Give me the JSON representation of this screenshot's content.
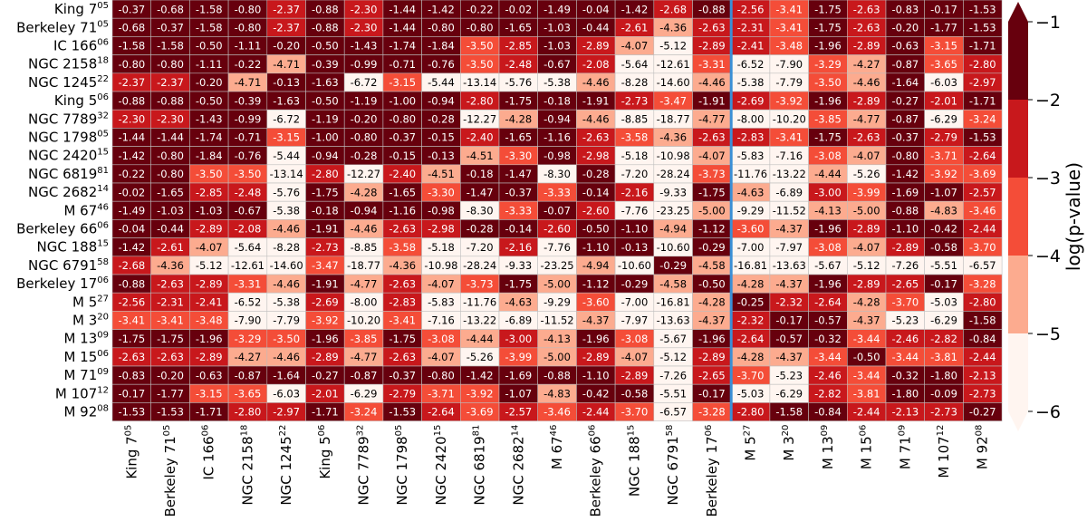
{
  "chart_data": {
    "type": "heatmap",
    "colorbar_label": "log(p-value)",
    "colorbar_ticks": [
      -1,
      -2,
      -3,
      -4,
      -5,
      -6
    ],
    "color_levels": [
      {
        "min": -2,
        "max": -1,
        "color": "#67000d"
      },
      {
        "min": -3,
        "max": -2,
        "color": "#c8181c"
      },
      {
        "min": -4,
        "max": -3,
        "color": "#f44d38"
      },
      {
        "min": -5,
        "max": -4,
        "color": "#fcab8f"
      },
      {
        "min": -6,
        "max": -5,
        "color": "#fff5f0"
      }
    ],
    "separator_after_index": 16,
    "labels": [
      {
        "name": "King 7",
        "sup": "05"
      },
      {
        "name": "Berkeley 71",
        "sup": "05"
      },
      {
        "name": "IC 166",
        "sup": "06"
      },
      {
        "name": "NGC 2158",
        "sup": "18"
      },
      {
        "name": "NGC 1245",
        "sup": "22"
      },
      {
        "name": "King 5",
        "sup": "06"
      },
      {
        "name": "NGC 7789",
        "sup": "32"
      },
      {
        "name": "NGC 1798",
        "sup": "05"
      },
      {
        "name": "NGC 2420",
        "sup": "15"
      },
      {
        "name": "NGC 6819",
        "sup": "81"
      },
      {
        "name": "NGC 2682",
        "sup": "14"
      },
      {
        "name": "M 67",
        "sup": "46"
      },
      {
        "name": "Berkeley 66",
        "sup": "06"
      },
      {
        "name": "NGC 188",
        "sup": "15"
      },
      {
        "name": "NGC 6791",
        "sup": "58"
      },
      {
        "name": "Berkeley 17",
        "sup": "06"
      },
      {
        "name": "M 5",
        "sup": "27"
      },
      {
        "name": "M 3",
        "sup": "20"
      },
      {
        "name": "M 13",
        "sup": "09"
      },
      {
        "name": "M 15",
        "sup": "06"
      },
      {
        "name": "M 71",
        "sup": "09"
      },
      {
        "name": "M 107",
        "sup": "12"
      },
      {
        "name": "M 92",
        "sup": "08"
      }
    ],
    "values": [
      [
        "-0.37",
        "-0.68",
        "-1.58",
        "-0.80",
        "-2.37",
        "-0.88",
        "-2.30",
        "-1.44",
        "-1.42",
        "-0.22",
        "-0.02",
        "-1.49",
        "-0.04",
        "-1.42",
        "-2.68",
        "-0.88",
        "-2.56",
        "-3.41",
        "-1.75",
        "-2.63",
        "-0.83",
        "-0.17",
        "-1.53"
      ],
      [
        "-0.68",
        "-0.37",
        "-1.58",
        "-0.80",
        "-2.37",
        "-0.88",
        "-2.30",
        "-1.44",
        "-0.80",
        "-0.80",
        "-1.65",
        "-1.03",
        "-0.44",
        "-2.61",
        "-4.36",
        "-2.63",
        "-2.31",
        "-3.41",
        "-1.75",
        "-2.63",
        "-0.20",
        "-1.77",
        "-1.53"
      ],
      [
        "-1.58",
        "-1.58",
        "-0.50",
        "-1.11",
        "-0.20",
        "-0.50",
        "-1.43",
        "-1.74",
        "-1.84",
        "-3.50",
        "-2.85",
        "-1.03",
        "-2.89",
        "-4.07",
        "-5.12",
        "-2.89",
        "-2.41",
        "-3.48",
        "-1.96",
        "-2.89",
        "-0.63",
        "-3.15",
        "-1.71"
      ],
      [
        "-0.80",
        "-0.80",
        "-1.11",
        "-0.22",
        "-4.71",
        "-0.39",
        "-0.99",
        "-0.71",
        "-0.76",
        "-3.50",
        "-2.48",
        "-0.67",
        "-2.08",
        "-5.64",
        "-12.61",
        "-3.31",
        "-6.52",
        "-7.90",
        "-3.29",
        "-4.27",
        "-0.87",
        "-3.65",
        "-2.80"
      ],
      [
        "-2.37",
        "-2.37",
        "-0.20",
        "-4.71",
        "-0.13",
        "-1.63",
        "-6.72",
        "-3.15",
        "-5.44",
        "-13.14",
        "-5.76",
        "-5.38",
        "-4.46",
        "-8.28",
        "-14.60",
        "-4.46",
        "-5.38",
        "-7.79",
        "-3.50",
        "-4.46",
        "-1.64",
        "-6.03",
        "-2.97"
      ],
      [
        "-0.88",
        "-0.88",
        "-0.50",
        "-0.39",
        "-1.63",
        "-0.50",
        "-1.19",
        "-1.00",
        "-0.94",
        "-2.80",
        "-1.75",
        "-0.18",
        "-1.91",
        "-2.73",
        "-3.47",
        "-1.91",
        "-2.69",
        "-3.92",
        "-1.96",
        "-2.89",
        "-0.27",
        "-2.01",
        "-1.71"
      ],
      [
        "-2.30",
        "-2.30",
        "-1.43",
        "-0.99",
        "-6.72",
        "-1.19",
        "-0.20",
        "-0.80",
        "-0.28",
        "-12.27",
        "-4.28",
        "-0.94",
        "-4.46",
        "-8.85",
        "-18.77",
        "-4.77",
        "-8.00",
        "-10.20",
        "-3.85",
        "-4.77",
        "-0.87",
        "-6.29",
        "-3.24"
      ],
      [
        "-1.44",
        "-1.44",
        "-1.74",
        "-0.71",
        "-3.15",
        "-1.00",
        "-0.80",
        "-0.37",
        "-0.15",
        "-2.40",
        "-1.65",
        "-1.16",
        "-2.63",
        "-3.58",
        "-4.36",
        "-2.63",
        "-2.83",
        "-3.41",
        "-1.75",
        "-2.63",
        "-0.37",
        "-2.79",
        "-1.53"
      ],
      [
        "-1.42",
        "-0.80",
        "-1.84",
        "-0.76",
        "-5.44",
        "-0.94",
        "-0.28",
        "-0.15",
        "-0.13",
        "-4.51",
        "-3.30",
        "-0.98",
        "-2.98",
        "-5.18",
        "-10.98",
        "-4.07",
        "-5.83",
        "-7.16",
        "-3.08",
        "-4.07",
        "-0.80",
        "-3.71",
        "-2.64"
      ],
      [
        "-0.22",
        "-0.80",
        "-3.50",
        "-3.50",
        "-13.14",
        "-2.80",
        "-12.27",
        "-2.40",
        "-4.51",
        "-0.18",
        "-1.47",
        "-8.30",
        "-0.28",
        "-7.20",
        "-28.24",
        "-3.73",
        "-11.76",
        "-13.22",
        "-4.44",
        "-5.26",
        "-1.42",
        "-3.92",
        "-3.69"
      ],
      [
        "-0.02",
        "-1.65",
        "-2.85",
        "-2.48",
        "-5.76",
        "-1.75",
        "-4.28",
        "-1.65",
        "-3.30",
        "-1.47",
        "-0.37",
        "-3.33",
        "-0.14",
        "-2.16",
        "-9.33",
        "-1.75",
        "-4.63",
        "-6.89",
        "-3.00",
        "-3.99",
        "-1.69",
        "-1.07",
        "-2.57"
      ],
      [
        "-1.49",
        "-1.03",
        "-1.03",
        "-0.67",
        "-5.38",
        "-0.18",
        "-0.94",
        "-1.16",
        "-0.98",
        "-8.30",
        "-3.33",
        "-0.07",
        "-2.60",
        "-7.76",
        "-23.25",
        "-5.00",
        "-9.29",
        "-11.52",
        "-4.13",
        "-5.00",
        "-0.88",
        "-4.83",
        "-3.46"
      ],
      [
        "-0.04",
        "-0.44",
        "-2.89",
        "-2.08",
        "-4.46",
        "-1.91",
        "-4.46",
        "-2.63",
        "-2.98",
        "-0.28",
        "-0.14",
        "-2.60",
        "-0.50",
        "-1.10",
        "-4.94",
        "-1.12",
        "-3.60",
        "-4.37",
        "-1.96",
        "-2.89",
        "-1.10",
        "-0.42",
        "-2.44"
      ],
      [
        "-1.42",
        "-2.61",
        "-4.07",
        "-5.64",
        "-8.28",
        "-2.73",
        "-8.85",
        "-3.58",
        "-5.18",
        "-7.20",
        "-2.16",
        "-7.76",
        "-1.10",
        "-0.13",
        "-10.60",
        "-0.29",
        "-7.00",
        "-7.97",
        "-3.08",
        "-4.07",
        "-2.89",
        "-0.58",
        "-3.70"
      ],
      [
        "-2.68",
        "-4.36",
        "-5.12",
        "-12.61",
        "-14.60",
        "-3.47",
        "-18.77",
        "-4.36",
        "-10.98",
        "-28.24",
        "-9.33",
        "-23.25",
        "-4.94",
        "-10.60",
        "-0.29",
        "-4.58",
        "-16.81",
        "-13.63",
        "-5.67",
        "-5.12",
        "-7.26",
        "-5.51",
        "-6.57"
      ],
      [
        "-0.88",
        "-2.63",
        "-2.89",
        "-3.31",
        "-4.46",
        "-1.91",
        "-4.77",
        "-2.63",
        "-4.07",
        "-3.73",
        "-1.75",
        "-5.00",
        "-1.12",
        "-0.29",
        "-4.58",
        "-0.50",
        "-4.28",
        "-4.37",
        "-1.96",
        "-2.89",
        "-2.65",
        "-0.17",
        "-3.28"
      ],
      [
        "-2.56",
        "-2.31",
        "-2.41",
        "-6.52",
        "-5.38",
        "-2.69",
        "-8.00",
        "-2.83",
        "-5.83",
        "-11.76",
        "-4.63",
        "-9.29",
        "-3.60",
        "-7.00",
        "-16.81",
        "-4.28",
        "-0.25",
        "-2.32",
        "-2.64",
        "-4.28",
        "-3.70",
        "-5.03",
        "-2.80"
      ],
      [
        "-3.41",
        "-3.41",
        "-3.48",
        "-7.90",
        "-7.79",
        "-3.92",
        "-10.20",
        "-3.41",
        "-7.16",
        "-13.22",
        "-6.89",
        "-11.52",
        "-4.37",
        "-7.97",
        "-13.63",
        "-4.37",
        "-2.32",
        "-0.17",
        "-0.57",
        "-4.37",
        "-5.23",
        "-6.29",
        "-1.58"
      ],
      [
        "-1.75",
        "-1.75",
        "-1.96",
        "-3.29",
        "-3.50",
        "-1.96",
        "-3.85",
        "-1.75",
        "-3.08",
        "-4.44",
        "-3.00",
        "-4.13",
        "-1.96",
        "-3.08",
        "-5.67",
        "-1.96",
        "-2.64",
        "-0.57",
        "-0.32",
        "-3.44",
        "-2.46",
        "-2.82",
        "-0.84"
      ],
      [
        "-2.63",
        "-2.63",
        "-2.89",
        "-4.27",
        "-4.46",
        "-2.89",
        "-4.77",
        "-2.63",
        "-4.07",
        "-5.26",
        "-3.99",
        "-5.00",
        "-2.89",
        "-4.07",
        "-5.12",
        "-2.89",
        "-4.28",
        "-4.37",
        "-3.44",
        "-0.50",
        "-3.44",
        "-3.81",
        "-2.44"
      ],
      [
        "-0.83",
        "-0.20",
        "-0.63",
        "-0.87",
        "-1.64",
        "-0.27",
        "-0.87",
        "-0.37",
        "-0.80",
        "-1.42",
        "-1.69",
        "-0.88",
        "-1.10",
        "-2.89",
        "-7.26",
        "-2.65",
        "-3.70",
        "-5.23",
        "-2.46",
        "-3.44",
        "-0.32",
        "-1.80",
        "-2.13"
      ],
      [
        "-0.17",
        "-1.77",
        "-3.15",
        "-3.65",
        "-6.03",
        "-2.01",
        "-6.29",
        "-2.79",
        "-3.71",
        "-3.92",
        "-1.07",
        "-4.83",
        "-0.42",
        "-0.58",
        "-5.51",
        "-0.17",
        "-5.03",
        "-6.29",
        "-2.82",
        "-3.81",
        "-1.80",
        "-0.09",
        "-2.73"
      ],
      [
        "-1.53",
        "-1.53",
        "-1.71",
        "-2.80",
        "-2.97",
        "-1.71",
        "-3.24",
        "-1.53",
        "-2.64",
        "-3.69",
        "-2.57",
        "-3.46",
        "-2.44",
        "-3.70",
        "-6.57",
        "-3.28",
        "-2.80",
        "-1.58",
        "-0.84",
        "-2.44",
        "-2.13",
        "-2.73",
        "-0.27"
      ]
    ]
  }
}
